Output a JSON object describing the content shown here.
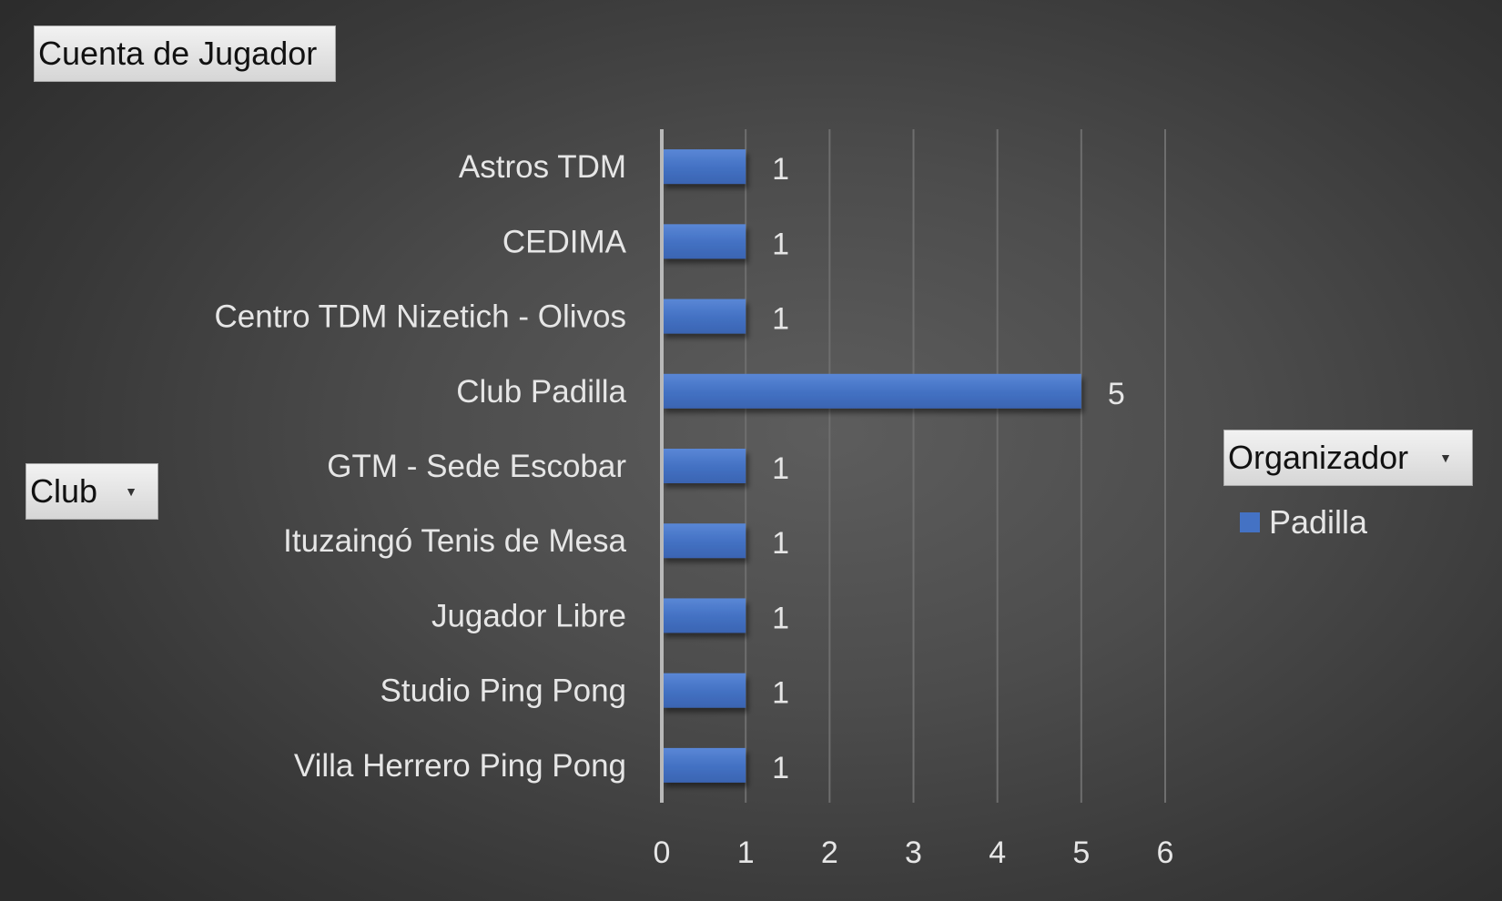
{
  "pivot_fields": {
    "values_field": "Cuenta de Jugador",
    "axis_field": "Club",
    "legend_field": "Organizador"
  },
  "colors": {
    "bar": "#4472c4",
    "text": "#e6e6e6",
    "grid": "#6e6e6e",
    "axis_line": "#b8b8b8"
  },
  "icons": {
    "dropdown": "chevron-down-icon"
  },
  "chart_data": {
    "type": "bar",
    "orientation": "horizontal",
    "categories": [
      "Astros TDM",
      "CEDIMA",
      "Centro TDM Nizetich - Olivos",
      "Club Padilla",
      "GTM - Sede Escobar",
      "Ituzaingó Tenis de Mesa",
      "Jugador Libre",
      "Studio Ping Pong",
      "Villa Herrero Ping Pong"
    ],
    "series": [
      {
        "name": "Padilla",
        "values": [
          1,
          1,
          1,
          5,
          1,
          1,
          1,
          1,
          1
        ]
      }
    ],
    "xlim": [
      0,
      6
    ],
    "x_ticks": [
      0,
      1,
      2,
      3,
      4,
      5,
      6
    ],
    "data_labels": true,
    "grid": "vertical",
    "legend": "right",
    "title": "",
    "xlabel": "",
    "ylabel": ""
  }
}
